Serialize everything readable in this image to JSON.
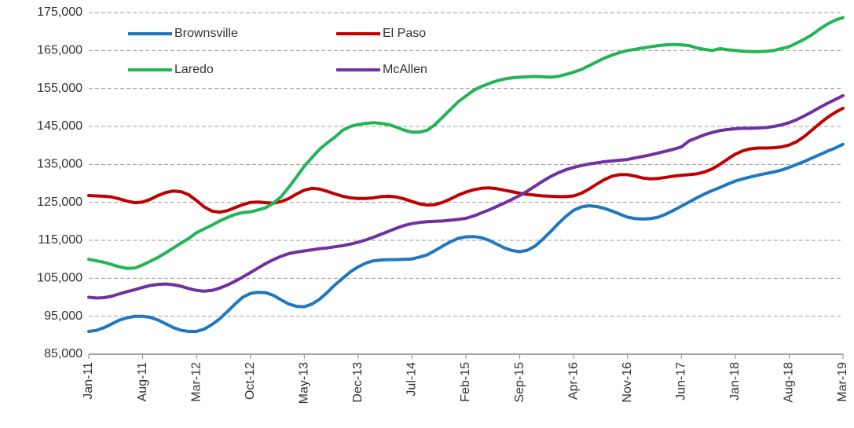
{
  "chart_data": {
    "type": "line",
    "categories": [
      "Jan-11",
      null,
      null,
      null,
      null,
      null,
      null,
      "Aug-11",
      null,
      null,
      null,
      null,
      null,
      null,
      "Mar-12",
      null,
      null,
      null,
      null,
      null,
      null,
      "Oct-12",
      null,
      null,
      null,
      null,
      null,
      null,
      "May-13",
      null,
      null,
      null,
      null,
      null,
      null,
      "Dec-13",
      null,
      null,
      null,
      null,
      null,
      null,
      "Jul-14",
      null,
      null,
      null,
      null,
      null,
      null,
      "Feb-15",
      null,
      null,
      null,
      null,
      null,
      null,
      "Sep-15",
      null,
      null,
      null,
      null,
      null,
      null,
      "Apr-16",
      null,
      null,
      null,
      null,
      null,
      null,
      "Nov-16",
      null,
      null,
      null,
      null,
      null,
      null,
      "Jun-17",
      null,
      null,
      null,
      null,
      null,
      null,
      "Jan-18",
      null,
      null,
      null,
      null,
      null,
      null,
      "Aug-18",
      null,
      null,
      null,
      null,
      null,
      null,
      "Mar-19"
    ],
    "series": [
      {
        "name": "Brownsville",
        "color": "#1f77c0",
        "values": [
          91000,
          91300,
          92000,
          93000,
          94000,
          94600,
          95000,
          95000,
          94700,
          94000,
          93000,
          92000,
          91300,
          91000,
          91000,
          91600,
          92800,
          94300,
          96200,
          98200,
          100000,
          101000,
          101300,
          101200,
          100500,
          99300,
          98200,
          97600,
          97500,
          98200,
          99500,
          101300,
          103300,
          105000,
          106700,
          108000,
          109000,
          109600,
          109800,
          109900,
          109900,
          110000,
          110100,
          110600,
          111200,
          112300,
          113500,
          114600,
          115500,
          115900,
          116000,
          115700,
          115000,
          114000,
          113000,
          112300,
          112000,
          112400,
          113500,
          115300,
          117300,
          119400,
          121300,
          122900,
          123800,
          124100,
          123900,
          123400,
          122700,
          121900,
          121100,
          120700,
          120600,
          120700,
          121100,
          121900,
          122900,
          124000,
          125100,
          126200,
          127200,
          128100,
          128900,
          129800,
          130600,
          131200,
          131700,
          132200,
          132600,
          133000,
          133500,
          134200,
          135000,
          135800,
          136700,
          137600,
          138500,
          139300,
          140300
        ]
      },
      {
        "name": "El Paso",
        "color": "#c00000",
        "values": [
          126800,
          126700,
          126600,
          126400,
          125900,
          125300,
          124900,
          125100,
          125800,
          126800,
          127600,
          128000,
          127800,
          127000,
          125500,
          123800,
          122700,
          122400,
          122800,
          123600,
          124400,
          125000,
          125100,
          124900,
          124800,
          125200,
          126000,
          127200,
          128200,
          128700,
          128500,
          127900,
          127200,
          126600,
          126200,
          126000,
          126000,
          126200,
          126500,
          126600,
          126400,
          125900,
          125200,
          124600,
          124300,
          124400,
          125000,
          125900,
          126900,
          127700,
          128300,
          128700,
          128800,
          128600,
          128200,
          127800,
          127400,
          127100,
          126900,
          126700,
          126600,
          126500,
          126500,
          126700,
          127400,
          128500,
          129800,
          131000,
          131900,
          132300,
          132300,
          131900,
          131400,
          131200,
          131300,
          131600,
          131900,
          132100,
          132300,
          132500,
          133000,
          133800,
          135000,
          136400,
          137700,
          138600,
          139100,
          139300,
          139300,
          139400,
          139600,
          140100,
          141000,
          142400,
          144100,
          145800,
          147400,
          148700,
          149800
        ]
      },
      {
        "name": "Laredo",
        "color": "#22b455",
        "values": [
          110000,
          109600,
          109200,
          108600,
          108000,
          107600,
          107700,
          108500,
          109500,
          110500,
          111700,
          113000,
          114300,
          115500,
          117000,
          118000,
          119000,
          120100,
          121000,
          121800,
          122300,
          122500,
          123000,
          123600,
          124800,
          126500,
          129000,
          131700,
          134500,
          136800,
          139000,
          140700,
          142200,
          144000,
          145000,
          145500,
          145800,
          146000,
          145800,
          145500,
          144800,
          144000,
          143500,
          143500,
          144000,
          145500,
          147500,
          149500,
          151500,
          153000,
          154500,
          155500,
          156300,
          157000,
          157500,
          157800,
          158000,
          158100,
          158200,
          158100,
          158000,
          158200,
          158700,
          159300,
          160000,
          161000,
          162000,
          163000,
          163800,
          164500,
          165000,
          165300,
          165700,
          166000,
          166300,
          166500,
          166600,
          166500,
          166300,
          165700,
          165300,
          165000,
          165500,
          165200,
          165000,
          164800,
          164700,
          164700,
          164800,
          165000,
          165500,
          166000,
          167000,
          168000,
          169200,
          170700,
          172000,
          173000,
          173700
        ]
      },
      {
        "name": "McAllen",
        "color": "#7030a0",
        "values": [
          100000,
          99800,
          99900,
          100300,
          100900,
          101500,
          102000,
          102600,
          103100,
          103400,
          103500,
          103300,
          102900,
          102300,
          101800,
          101600,
          101800,
          102400,
          103200,
          104200,
          105300,
          106500,
          107700,
          108900,
          109900,
          110800,
          111500,
          111900,
          112200,
          112500,
          112800,
          113000,
          113300,
          113600,
          114000,
          114500,
          115100,
          115800,
          116600,
          117400,
          118200,
          118900,
          119400,
          119700,
          119900,
          120000,
          120100,
          120300,
          120500,
          120800,
          121400,
          122200,
          123000,
          123900,
          124800,
          125800,
          126800,
          128000,
          129300,
          130600,
          131800,
          132800,
          133600,
          134200,
          134700,
          135100,
          135400,
          135700,
          135900,
          136100,
          136300,
          136700,
          137100,
          137500,
          138000,
          138500,
          139000,
          139600,
          141200,
          142000,
          142800,
          143400,
          143900,
          144200,
          144400,
          144500,
          144500,
          144600,
          144700,
          145000,
          145400,
          146000,
          146800,
          147800,
          148900,
          150000,
          151100,
          152100,
          153100
        ]
      }
    ],
    "ylim": [
      85000,
      175000
    ],
    "yticks": [
      {
        "value": 85000,
        "label": "85,000"
      },
      {
        "value": 95000,
        "label": "95,000"
      },
      {
        "value": 105000,
        "label": "105,000"
      },
      {
        "value": 115000,
        "label": "115,000"
      },
      {
        "value": 125000,
        "label": "125,000"
      },
      {
        "value": 135000,
        "label": "135,000"
      },
      {
        "value": 145000,
        "label": "145,000"
      },
      {
        "value": 155000,
        "label": "155,000"
      },
      {
        "value": 165000,
        "label": "165,000"
      },
      {
        "value": 175000,
        "label": "175,000"
      }
    ],
    "grid": true,
    "legend": "top-left"
  }
}
